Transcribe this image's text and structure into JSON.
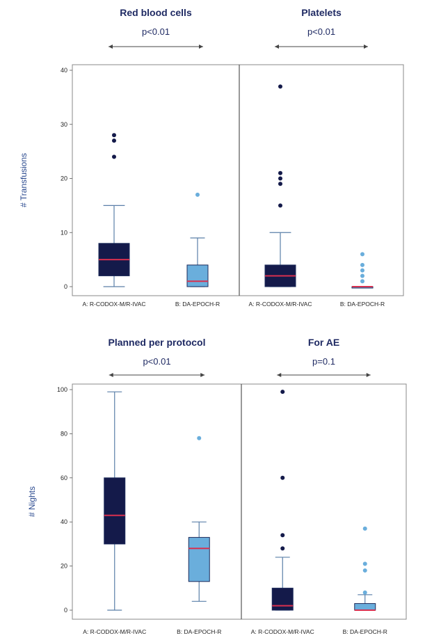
{
  "chart_data": [
    {
      "type": "box",
      "ylabel": "# Transfusions",
      "ylim": [
        0,
        40
      ],
      "yticks": [
        0,
        10,
        20,
        30,
        40
      ],
      "panels": [
        {
          "title": "Red blood cells",
          "pvalue": "p<0.01",
          "groups": [
            {
              "label": "A: R-CODOX-M/R-IVAC",
              "color": "#141a4a",
              "min": 0,
              "q1": 2,
              "median": 5,
              "q3": 8,
              "max": 15,
              "outliers": [
                24,
                27,
                28
              ]
            },
            {
              "label": "B: DA-EPOCH-R",
              "color": "#6aaedc",
              "min": 0,
              "q1": 0,
              "median": 1,
              "q3": 4,
              "max": 9,
              "outliers": [
                17
              ]
            }
          ]
        },
        {
          "title": "Platelets",
          "pvalue": "p<0.01",
          "groups": [
            {
              "label": "A: R-CODOX-M/R-IVAC",
              "color": "#141a4a",
              "min": 0,
              "q1": 0,
              "median": 2,
              "q3": 4,
              "max": 10,
              "outliers": [
                15,
                19,
                20,
                21,
                37
              ]
            },
            {
              "label": "B: DA-EPOCH-R",
              "color": "#6aaedc",
              "min": 0,
              "q1": 0,
              "median": 0,
              "q3": 0,
              "max": 0,
              "outliers": [
                1,
                2,
                3,
                4,
                6
              ]
            }
          ]
        }
      ]
    },
    {
      "type": "box",
      "ylabel": "# Nights",
      "ylim": [
        0,
        100
      ],
      "yticks": [
        0,
        20,
        40,
        60,
        80,
        100
      ],
      "panels": [
        {
          "title": "Planned per protocol",
          "pvalue": "p<0.01",
          "groups": [
            {
              "label": "A: R-CODOX-M/R-IVAC",
              "color": "#141a4a",
              "min": 0,
              "q1": 30,
              "median": 43,
              "q3": 60,
              "max": 99,
              "outliers": []
            },
            {
              "label": "B: DA-EPOCH-R",
              "color": "#6aaedc",
              "min": 4,
              "q1": 13,
              "median": 28,
              "q3": 33,
              "max": 40,
              "outliers": [
                78
              ]
            }
          ]
        },
        {
          "title": "For AE",
          "pvalue": "p=0.1",
          "groups": [
            {
              "label": "A: R-CODOX-M/R-IVAC",
              "color": "#141a4a",
              "min": 0,
              "q1": 0,
              "median": 2,
              "q3": 10,
              "max": 24,
              "outliers": [
                28,
                34,
                60,
                99
              ]
            },
            {
              "label": "B: DA-EPOCH-R",
              "color": "#6aaedc",
              "min": 0,
              "q1": 0,
              "median": 0,
              "q3": 3,
              "max": 7,
              "outliers": [
                8,
                18,
                21,
                37
              ]
            }
          ]
        }
      ]
    }
  ],
  "colors": {
    "median": "#d9304f",
    "whisker": "#5a7fa8",
    "frame": "#888888",
    "bracket": "#444444"
  }
}
